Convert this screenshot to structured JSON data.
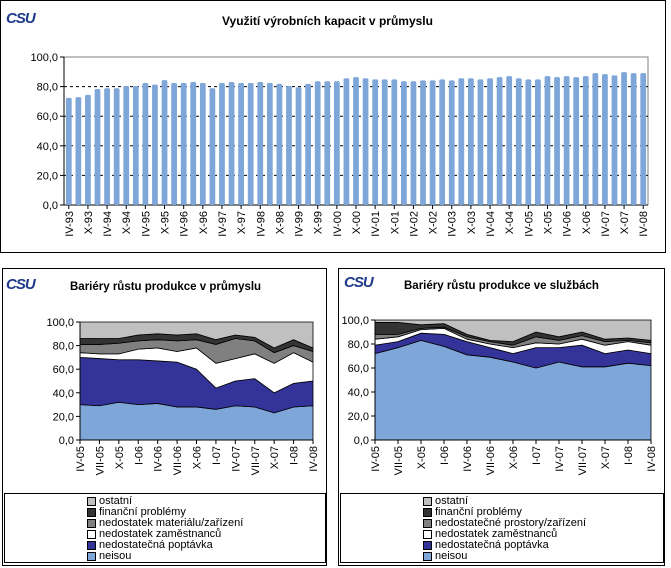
{
  "logo_text": "CSU",
  "chart_data": [
    {
      "type": "bar",
      "title": "Využití výrobních kapacit v průmyslu",
      "ylim": [
        0,
        100
      ],
      "yticks": [
        "0,0",
        "20,0",
        "40,0",
        "60,0",
        "80,0",
        "100,0"
      ],
      "grid": true,
      "color": "#7ea6d8",
      "tick_labels": [
        "IV-93",
        "X-93",
        "IV-94",
        "X-94",
        "IV-95",
        "X-95",
        "IV-96",
        "X-96",
        "IV-97",
        "X-97",
        "IV-98",
        "X-98",
        "IV-99",
        "X-99",
        "IV-00",
        "X-00",
        "IV-01",
        "X-01",
        "IV-02",
        "X-02",
        "IV-03",
        "X-03",
        "IV-04",
        "X-04",
        "IV-05",
        "X-05",
        "IV-06",
        "X-06",
        "IV-07",
        "X-07",
        "IV-08"
      ],
      "values": [
        72.4,
        72.9,
        74.4,
        78.4,
        78.9,
        78.9,
        80.4,
        80.4,
        82.4,
        81.3,
        84.4,
        82.4,
        82.4,
        83.1,
        82.4,
        78.9,
        82.4,
        83.1,
        82.4,
        82.4,
        83.1,
        82.4,
        81.8,
        80.4,
        79.6,
        81.8,
        83.6,
        83.6,
        83.6,
        85.6,
        86.4,
        85.6,
        84.9,
        84.9,
        84.9,
        83.6,
        83.6,
        84.2,
        84.2,
        84.9,
        84.2,
        85.6,
        85.6,
        84.9,
        85.6,
        86.4,
        87.1,
        85.6,
        84.9,
        84.9,
        87.1,
        86.4,
        87.1,
        86.4,
        87.1,
        89.1,
        88.4,
        87.6,
        89.8,
        89.1,
        89.1
      ]
    },
    {
      "type": "area",
      "stacked": true,
      "title": "Bariéry růstu produkce v průmyslu",
      "ylim": [
        0,
        100
      ],
      "yticks": [
        "0,0",
        "20,0",
        "40,0",
        "60,0",
        "80,0",
        "100,0"
      ],
      "categories": [
        "IV-05",
        "VII-05",
        "X-05",
        "I-06",
        "IV-06",
        "VII-06",
        "X-06",
        "I-07",
        "IV-07",
        "VII-07",
        "X-07",
        "I-08",
        "IV-08"
      ],
      "legend_placement": "bottom",
      "series": [
        {
          "name": "neisou",
          "color": "#7ea6d8",
          "values": [
            30,
            29,
            32,
            30,
            31,
            28,
            28,
            26,
            29,
            28,
            23,
            28,
            29
          ]
        },
        {
          "name": "nedostatečná poptávka",
          "color": "#333399",
          "values": [
            40,
            40,
            36,
            38,
            36,
            38,
            32,
            18,
            21,
            24,
            17,
            20,
            21
          ]
        },
        {
          "name": "nedostatek zaměstnanců",
          "color": "#ffffff",
          "values": [
            4,
            4,
            5,
            9,
            11,
            9,
            18,
            21,
            19,
            21,
            25,
            26,
            16
          ]
        },
        {
          "name": "nedostatek materiálu/zařízení",
          "color": "#808080",
          "values": [
            7,
            8,
            9,
            7,
            7,
            9,
            7,
            16,
            17,
            11,
            9,
            6,
            9
          ]
        },
        {
          "name": "finanční problémy",
          "color": "#333333",
          "values": [
            5,
            5,
            4,
            5,
            5,
            5,
            5,
            4,
            3,
            3,
            4,
            5,
            3
          ]
        },
        {
          "name": "ostatní",
          "color": "#c0c0c0",
          "values": [
            14,
            14,
            14,
            11,
            10,
            11,
            10,
            15,
            11,
            13,
            22,
            15,
            22
          ]
        }
      ]
    },
    {
      "type": "area",
      "stacked": true,
      "title": "Bariéry růstu produkce ve službách",
      "ylim": [
        0,
        100
      ],
      "yticks": [
        "0,0",
        "20,0",
        "40,0",
        "60,0",
        "80,0",
        "100,0"
      ],
      "categories": [
        "IV-05",
        "VII-05",
        "X-05",
        "I-06",
        "IV-06",
        "VII-06",
        "X-06",
        "I-07",
        "IV-07",
        "VII-07",
        "X-07",
        "I-08",
        "IV-08"
      ],
      "legend_placement": "bottom",
      "series": [
        {
          "name": "neisou",
          "color": "#7ea6d8",
          "values": [
            72,
            77,
            83,
            78,
            71,
            69,
            65,
            60,
            65,
            61,
            61,
            64,
            62
          ]
        },
        {
          "name": "nedostatečná poptávka",
          "color": "#333399",
          "values": [
            7,
            5,
            6,
            10,
            11,
            8,
            7,
            17,
            12,
            18,
            11,
            11,
            10
          ]
        },
        {
          "name": "nedostatek zaměstnanců",
          "color": "#ffffff",
          "values": [
            5,
            4,
            3,
            5,
            2,
            3,
            5,
            4,
            3,
            5,
            7,
            7,
            7
          ]
        },
        {
          "name": "nedostatečné prostory/zařízení",
          "color": "#808080",
          "values": [
            4,
            2,
            1,
            1,
            2,
            2,
            2,
            5,
            3,
            3,
            3,
            1,
            2
          ]
        },
        {
          "name": "finanční problémy",
          "color": "#333333",
          "values": [
            10,
            10,
            3,
            3,
            2,
            1,
            3,
            4,
            3,
            3,
            2,
            2,
            2
          ]
        },
        {
          "name": "ostatní",
          "color": "#c0c0c0",
          "values": [
            2,
            2,
            4,
            3,
            12,
            17,
            18,
            10,
            14,
            10,
            16,
            15,
            17
          ]
        }
      ]
    }
  ]
}
